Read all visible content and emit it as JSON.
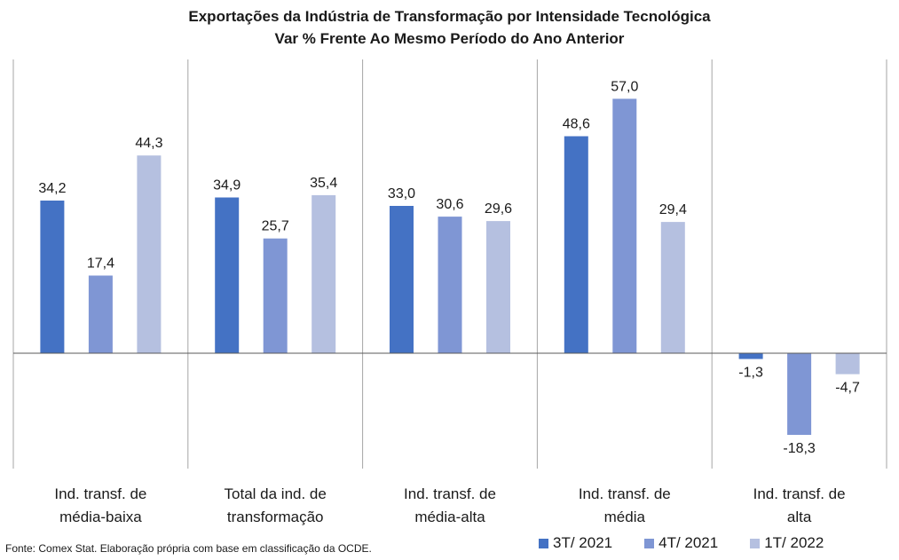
{
  "title_line1": "Exportações da Indústria de Transformação por Intensidade Tecnológica",
  "title_line2": "Var % Frente Ao Mesmo Período do Ano Anterior",
  "source": "Fonte: Comex Stat. Elaboração própria com base em classificação da OCDE.",
  "chart_data": {
    "type": "bar",
    "title": "Exportações da Indústria de Transformação por Intensidade Tecnológica",
    "subtitle": "Var % Frente Ao Mesmo Período do Ano Anterior",
    "categories": [
      [
        "Ind. transf. de",
        "média-baixa"
      ],
      [
        "Total da ind. de",
        "transformação"
      ],
      [
        "Ind. transf. de",
        "média-alta"
      ],
      [
        "Ind. transf. de",
        "média"
      ],
      [
        "Ind. transf. de",
        "alta"
      ]
    ],
    "series": [
      {
        "name": "3T/ 2021",
        "color": "#4472c4",
        "values": [
          34.2,
          34.9,
          33.0,
          48.6,
          -1.3
        ]
      },
      {
        "name": "4T/ 2021",
        "color": "#7f96d4",
        "values": [
          17.4,
          25.7,
          30.6,
          57.0,
          -18.3
        ]
      },
      {
        "name": "1T/ 2022",
        "color": "#b5c0e0",
        "values": [
          44.3,
          35.4,
          29.6,
          29.4,
          -4.7
        ]
      }
    ],
    "value_labels": [
      [
        "34,2",
        "34,9",
        "33,0",
        "48,6",
        "-1,3"
      ],
      [
        "17,4",
        "25,7",
        "30,6",
        "57,0",
        "-18,3"
      ],
      [
        "44,3",
        "35,4",
        "29,6",
        "29,4",
        "-4,7"
      ]
    ],
    "ylim": [
      -25,
      65
    ],
    "grid": false,
    "legend_position": "bottom-right"
  }
}
